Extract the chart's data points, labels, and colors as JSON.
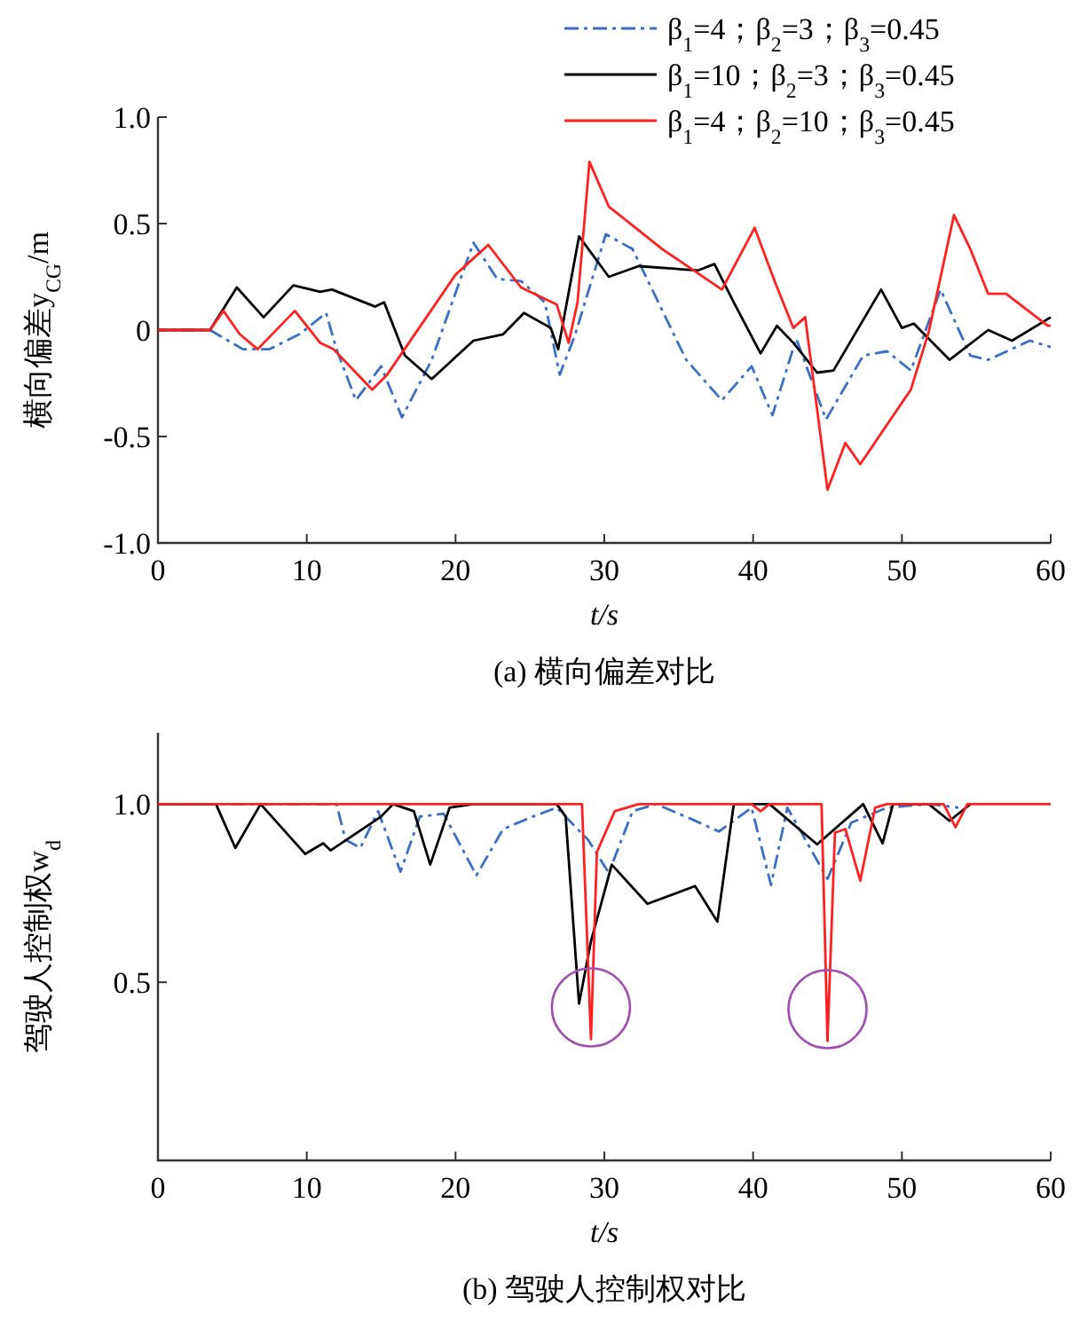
{
  "chart_data": [
    {
      "type": "line",
      "xlabel": "t/s",
      "ylabel": "横向偏差y$_{CG}$/m",
      "xlim": [
        0,
        60
      ],
      "ylim": [
        -1,
        1
      ],
      "xticks": [
        0,
        10,
        20,
        30,
        40,
        50,
        60
      ],
      "yticks": [
        {
          "value": -1,
          "label": "-1.0"
        },
        {
          "value": -0.5,
          "label": "-0.5"
        },
        0,
        {
          "value": 0.5,
          "label": "0.5"
        },
        {
          "value": 1,
          "label": "1.0"
        }
      ],
      "legend": "top right",
      "annotations": [
        "(a) 横向偏差对比"
      ],
      "series": [
        {
          "name": "β$_{1}$=4；β$_{2}$=3；β$_{3}$=0.45",
          "color": "#3a6fc4",
          "line_style": "dashdot",
          "x": [
            0,
            3.5,
            5.7,
            7.5,
            9.5,
            11.3,
            12,
            13.3,
            15,
            16.4,
            18.4,
            21.2,
            22.8,
            24.4,
            26,
            27,
            28,
            30.1,
            31.9,
            35.5,
            37.9,
            39.9,
            41.3,
            42.9,
            44.9,
            47.4,
            49,
            50.6,
            52.6,
            54.6,
            55.8,
            58.6,
            60
          ],
          "values": [
            0,
            0,
            -0.09,
            -0.09,
            -0.02,
            0.08,
            -0.09,
            -0.33,
            -0.17,
            -0.41,
            -0.14,
            0.41,
            0.24,
            0.23,
            0.13,
            -0.21,
            -0.03,
            0.45,
            0.38,
            -0.14,
            -0.33,
            -0.17,
            -0.4,
            -0.04,
            -0.42,
            -0.12,
            -0.1,
            -0.19,
            0.19,
            -0.12,
            -0.14,
            -0.05,
            -0.08
          ]
        },
        {
          "name": "β$_{1}$=10；β$_{2}$=3；β$_{3}$=0.45",
          "color": "#000000",
          "line_style": "solid",
          "x": [
            0,
            3.5,
            5.3,
            7.1,
            9.1,
            10.9,
            11.7,
            14.6,
            15.2,
            16.6,
            18.4,
            21.2,
            23.2,
            24.6,
            26.4,
            26.9,
            28.3,
            30.3,
            32.3,
            36.3,
            37.4,
            38.7,
            40.5,
            41.6,
            42.7,
            44.3,
            45.4,
            48.6,
            50,
            50.8,
            53.2,
            55.8,
            57.4,
            60
          ],
          "values": [
            0,
            0,
            0.2,
            0.06,
            0.21,
            0.18,
            0.19,
            0.11,
            0.13,
            -0.12,
            -0.23,
            -0.05,
            -0.02,
            0.08,
            0.01,
            -0.09,
            0.44,
            0.25,
            0.3,
            0.28,
            0.31,
            0.13,
            -0.11,
            0.02,
            -0.06,
            -0.2,
            -0.19,
            0.19,
            0.01,
            0.03,
            -0.14,
            0,
            -0.05,
            0.06
          ]
        },
        {
          "name": "β$_{1}$=4；β$_{2}$=10；β$_{3}$=0.45",
          "color": "#ff2020",
          "line_style": "solid",
          "x": [
            0,
            3.5,
            4.4,
            5.5,
            6.7,
            9.2,
            10.9,
            11.8,
            14.4,
            15.4,
            20,
            22.2,
            24.4,
            26.8,
            27.6,
            28.2,
            29,
            30.3,
            33.9,
            37.9,
            40.1,
            41.5,
            42.7,
            43.5,
            45,
            46.2,
            47.2,
            50.6,
            51.8,
            53.5,
            54.6,
            55.8,
            57,
            59.8,
            60
          ],
          "values": [
            0,
            0,
            0.09,
            -0.02,
            -0.09,
            0.09,
            -0.06,
            -0.09,
            -0.28,
            -0.21,
            0.26,
            0.4,
            0.2,
            0.12,
            -0.06,
            0.13,
            0.79,
            0.58,
            0.38,
            0.19,
            0.48,
            0.22,
            0.01,
            0.06,
            -0.75,
            -0.53,
            -0.63,
            -0.28,
            -0.01,
            0.54,
            0.38,
            0.17,
            0.17,
            0.02,
            0.02
          ]
        }
      ]
    },
    {
      "type": "line",
      "xlabel": "t/s",
      "ylabel": "驾驶人控制权w$_{d}$",
      "xlim": [
        0,
        60
      ],
      "ylim": [
        0,
        1.2
      ],
      "xticks": [
        0,
        10,
        20,
        30,
        40,
        50,
        60
      ],
      "yticks": [
        {
          "value": 0.5,
          "label": "0.5"
        },
        {
          "value": 1,
          "label": "1.0"
        }
      ],
      "annotations": [
        "(b) 驾驶人控制权对比"
      ],
      "series": [
        {
          "color": "#3a6fc4",
          "line_style": "dashdot",
          "x": [
            0,
            12,
            12.6,
            13.6,
            14.8,
            16.3,
            17.6,
            19.2,
            21.4,
            23.2,
            25.2,
            26.8,
            28.9,
            30.3,
            31.9,
            33.5,
            35.9,
            37.7,
            39.9,
            41.2,
            42.3,
            45,
            46.6,
            49,
            51.8,
            53.8
          ],
          "values": [
            1,
            1,
            0.9,
            0.877,
            0.98,
            0.81,
            0.965,
            0.973,
            0.8,
            0.93,
            0.965,
            0.99,
            0.9,
            0.807,
            0.98,
            1,
            0.957,
            0.923,
            0.99,
            0.773,
            0.99,
            0.79,
            0.948,
            0.99,
            1,
            0.99
          ]
        },
        {
          "color": "#000000",
          "line_style": "solid",
          "x": [
            0,
            3.9,
            5.2,
            6.9,
            9.9,
            11.1,
            11.6,
            15,
            15.8,
            17.2,
            18.3,
            19.6,
            21.2,
            26.8,
            27.4,
            28.3,
            29.1,
            30.5,
            32.9,
            36.1,
            37.6,
            38.7,
            41.1,
            44.3,
            47.4,
            48.7,
            49.4,
            51.8,
            53.2,
            54.6
          ],
          "values": [
            1,
            1,
            0.877,
            1,
            0.86,
            0.89,
            0.87,
            0.965,
            1,
            0.98,
            0.83,
            0.99,
            1,
            1,
            0.965,
            0.44,
            0.615,
            0.83,
            0.72,
            0.77,
            0.67,
            1,
            1,
            0.887,
            1,
            0.89,
            1,
            1,
            0.953,
            1
          ]
        },
        {
          "color": "#ff2020",
          "line_style": "solid",
          "x": [
            0,
            28.5,
            29.1,
            29.5,
            30.7,
            32.3,
            39.9,
            40.5,
            41.1,
            44.6,
            45,
            45.5,
            46.2,
            47.2,
            48.2,
            49,
            52.8,
            53.6,
            54.4,
            60
          ],
          "values": [
            1,
            1,
            0.34,
            0.865,
            0.98,
            1,
            1,
            0.98,
            1,
            1,
            0.335,
            0.92,
            0.93,
            0.785,
            0.99,
            1,
            1,
            0.935,
            1,
            1
          ]
        }
      ]
    }
  ]
}
